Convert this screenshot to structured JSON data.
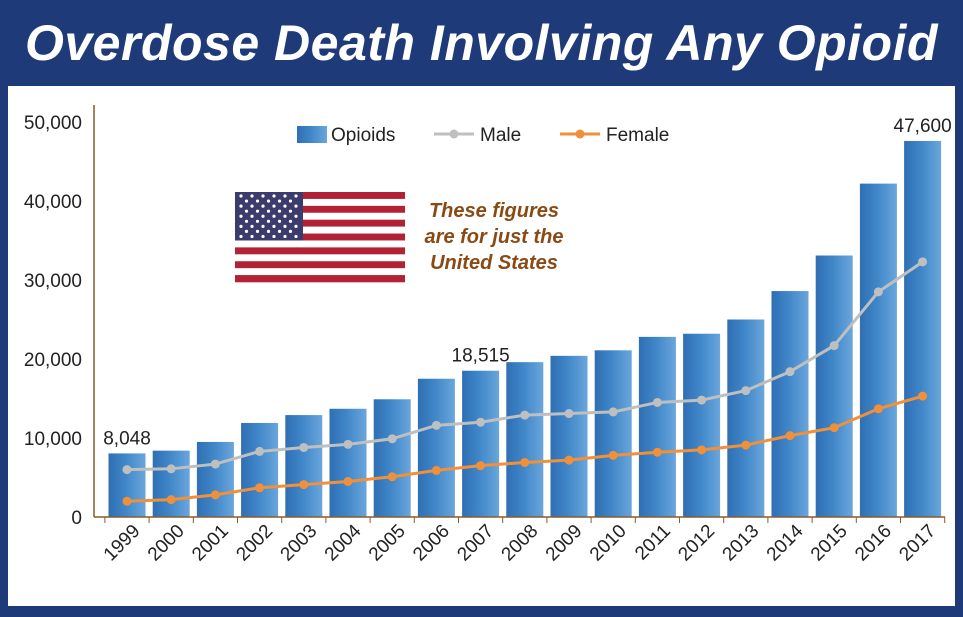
{
  "title": "Overdose Death Involving Any Opioid",
  "note": {
    "lines": [
      "These figures",
      "are for just the",
      "United States"
    ]
  },
  "colors": {
    "frame": "#1f3a78",
    "bar": "#3f86c8",
    "male": "#bfbfbf",
    "female": "#f0903a",
    "note_text": "#8a4a14",
    "axis": "#8b5a2b"
  },
  "chart_data": {
    "type": "bar",
    "categories": [
      "1999",
      "2000",
      "2001",
      "2002",
      "2003",
      "2004",
      "2005",
      "2006",
      "2007",
      "2008",
      "2009",
      "2010",
      "2011",
      "2012",
      "2013",
      "2014",
      "2015",
      "2016",
      "2017"
    ],
    "ylim": [
      0,
      50000
    ],
    "yticks": [
      0,
      10000,
      20000,
      30000,
      40000,
      50000
    ],
    "ytick_labels": [
      "0",
      "10,000",
      "20,000",
      "30,000",
      "40,000",
      "50,000"
    ],
    "legend_position": "top",
    "series": [
      {
        "name": "Opioids",
        "type": "bar",
        "values": [
          8048,
          8400,
          9500,
          11900,
          12900,
          13700,
          14900,
          17500,
          18515,
          19600,
          20400,
          21100,
          22800,
          23200,
          25000,
          28600,
          33100,
          42200,
          47600
        ]
      },
      {
        "name": "Male",
        "type": "line",
        "values": [
          6000,
          6100,
          6700,
          8300,
          8800,
          9200,
          9900,
          11600,
          12000,
          12900,
          13100,
          13300,
          14500,
          14800,
          16000,
          18400,
          21700,
          28500,
          32300
        ]
      },
      {
        "name": "Female",
        "type": "line",
        "values": [
          2000,
          2200,
          2800,
          3700,
          4100,
          4500,
          5100,
          5900,
          6500,
          6900,
          7200,
          7800,
          8200,
          8500,
          9100,
          10300,
          11300,
          13700,
          15300
        ]
      }
    ],
    "data_labels": [
      {
        "category": "1999",
        "text": "8,048"
      },
      {
        "category": "2007",
        "text": "18,515"
      },
      {
        "category": "2017",
        "text": "47,600"
      }
    ]
  }
}
